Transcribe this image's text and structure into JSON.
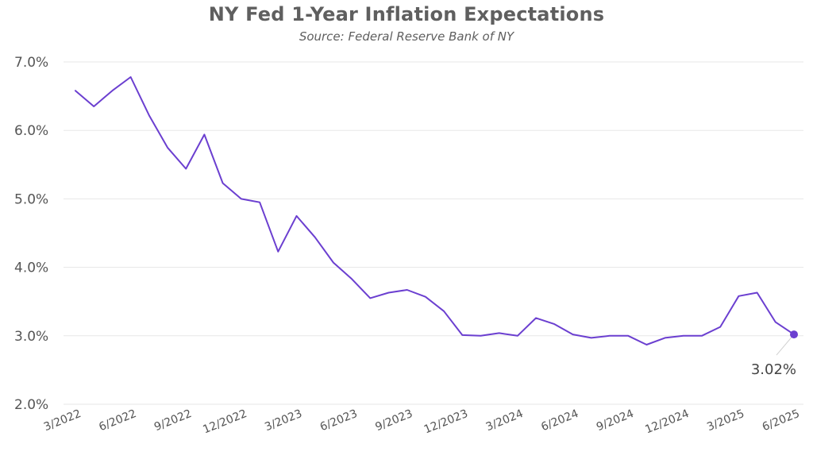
{
  "chart_data": {
    "type": "line",
    "title": "NY Fed 1-Year Inflation Expectations",
    "subtitle": "Source: Federal Reserve Bank of NY",
    "xlabel": "",
    "ylabel": "",
    "ylim": [
      2.0,
      7.0
    ],
    "y_ticks": [
      "7.0%",
      "6.0%",
      "5.0%",
      "4.0%",
      "3.0%",
      "2.0%"
    ],
    "y_tick_values": [
      7.0,
      6.0,
      5.0,
      4.0,
      3.0,
      2.0
    ],
    "x_ticks": [
      "3/2022",
      "6/2022",
      "9/2022",
      "12/2022",
      "3/2023",
      "6/2023",
      "9/2023",
      "12/2023",
      "3/2024",
      "6/2024",
      "9/2024",
      "12/2024",
      "3/2025",
      "6/2025"
    ],
    "grid": true,
    "x": [
      "3/2022",
      "4/2022",
      "5/2022",
      "6/2022",
      "7/2022",
      "8/2022",
      "9/2022",
      "10/2022",
      "11/2022",
      "12/2022",
      "1/2023",
      "2/2023",
      "3/2023",
      "4/2023",
      "5/2023",
      "6/2023",
      "7/2023",
      "8/2023",
      "9/2023",
      "10/2023",
      "11/2023",
      "12/2023",
      "1/2024",
      "2/2024",
      "3/2024",
      "4/2024",
      "5/2024",
      "6/2024",
      "7/2024",
      "8/2024",
      "9/2024",
      "10/2024",
      "11/2024",
      "12/2024",
      "1/2025",
      "2/2025",
      "3/2025",
      "4/2025",
      "5/2025",
      "6/2025"
    ],
    "series": [
      {
        "values": [
          6.58,
          6.35,
          6.58,
          6.78,
          6.22,
          5.75,
          5.44,
          5.94,
          5.23,
          5.0,
          4.95,
          4.23,
          4.75,
          4.44,
          4.07,
          3.83,
          3.55,
          3.63,
          3.67,
          3.57,
          3.36,
          3.01,
          3.0,
          3.04,
          3.0,
          3.26,
          3.17,
          3.02,
          2.97,
          3.0,
          3.0,
          2.87,
          2.97,
          3.0,
          3.0,
          3.13,
          3.58,
          3.63,
          3.2,
          3.02
        ],
        "color": "#6b3fd0"
      }
    ],
    "last_point_label": "3.02%"
  }
}
